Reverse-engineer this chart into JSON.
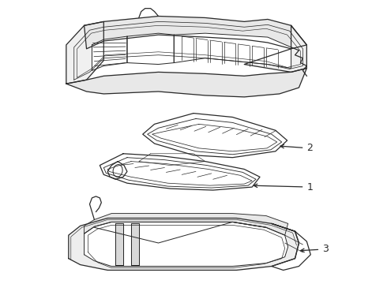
{
  "background_color": "#ffffff",
  "line_color": "#2a2a2a",
  "line_width": 0.9,
  "label_fontsize": 9,
  "figsize": [
    4.9,
    3.6
  ],
  "dpi": 100
}
